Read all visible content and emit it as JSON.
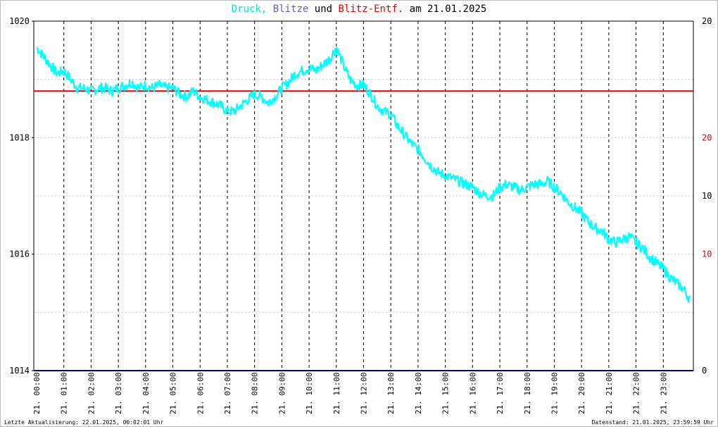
{
  "title": {
    "part1": "Druck,",
    "part2": "Blitze",
    "part3": "und",
    "part4": "Blitz-Entf.",
    "part5": "am 21.01.2025"
  },
  "colors": {
    "pressure": "#00ffff",
    "lightning": "#6060c0",
    "distance": "#e00000",
    "axis": "#000000",
    "grid": "#c8c8c8",
    "baseline": "#000080"
  },
  "footer": {
    "left": "Letzte Aktualisierung: 22.01.2025, 00:02:01 Uhr",
    "right": "Datenstand: 21.01.2025, 23:59:59 Uhr"
  },
  "chart_data": {
    "type": "line",
    "x_date": "21.",
    "x_tick_labels": [
      "00:00",
      "01:00",
      "02:00",
      "03:00",
      "04:00",
      "05:00",
      "06:00",
      "07:00",
      "08:00",
      "09:00",
      "10:00",
      "11:00",
      "12:00",
      "13:00",
      "14:00",
      "15:00",
      "16:00",
      "17:00",
      "18:00",
      "19:00",
      "20:00",
      "21:00",
      "22:00",
      "23:00"
    ],
    "left_axis": {
      "ylim": [
        1014,
        1020
      ],
      "ticks": [
        1014,
        1016,
        1018,
        1020
      ]
    },
    "right_axis_distance": {
      "ylim": [
        0,
        30
      ],
      "ticks": [
        0,
        10,
        20
      ],
      "color": "#e00000"
    },
    "right_axis_lightning": {
      "ylim": [
        0,
        30
      ],
      "ticks": [
        0,
        10,
        20
      ],
      "color": "#000000"
    },
    "grid": true,
    "series": [
      {
        "name": "Druck",
        "x_hours": [
          0,
          0.25,
          0.5,
          0.75,
          1,
          1.25,
          1.5,
          1.75,
          2,
          2.25,
          2.5,
          2.75,
          3,
          3.25,
          3.5,
          3.75,
          4,
          4.25,
          4.5,
          4.75,
          5,
          5.25,
          5.5,
          5.75,
          6,
          6.25,
          6.5,
          6.75,
          7,
          7.25,
          7.5,
          7.75,
          8,
          8.25,
          8.5,
          8.75,
          9,
          9.25,
          9.5,
          9.75,
          10,
          10.25,
          10.5,
          10.75,
          11,
          11.25,
          11.5,
          11.75,
          12,
          12.25,
          12.5,
          12.75,
          13,
          13.25,
          13.5,
          13.75,
          14,
          14.25,
          14.5,
          14.75,
          15,
          15.25,
          15.5,
          15.75,
          16,
          16.25,
          16.5,
          16.75,
          17,
          17.25,
          17.5,
          17.75,
          18,
          18.25,
          18.5,
          18.75,
          19,
          19.25,
          19.5,
          19.75,
          20,
          20.25,
          20.5,
          20.75,
          21,
          21.25,
          21.5,
          21.75,
          22,
          22.25,
          22.5,
          22.75,
          23,
          23.25,
          23.5,
          23.75,
          24
        ],
        "values": [
          1019.55,
          1019.4,
          1019.25,
          1019.1,
          1019.15,
          1019.0,
          1018.85,
          1018.85,
          1018.8,
          1018.85,
          1018.85,
          1018.8,
          1018.85,
          1018.9,
          1018.95,
          1018.85,
          1018.9,
          1018.85,
          1018.9,
          1018.85,
          1018.85,
          1018.75,
          1018.7,
          1018.8,
          1018.7,
          1018.65,
          1018.6,
          1018.55,
          1018.45,
          1018.45,
          1018.55,
          1018.65,
          1018.75,
          1018.7,
          1018.6,
          1018.7,
          1018.85,
          1018.95,
          1019.1,
          1019.15,
          1019.2,
          1019.15,
          1019.25,
          1019.35,
          1019.55,
          1019.25,
          1019.0,
          1018.9,
          1018.9,
          1018.75,
          1018.55,
          1018.45,
          1018.4,
          1018.2,
          1018.05,
          1017.9,
          1017.8,
          1017.65,
          1017.5,
          1017.4,
          1017.35,
          1017.3,
          1017.25,
          1017.2,
          1017.15,
          1017.05,
          1017.0,
          1017.0,
          1017.15,
          1017.2,
          1017.15,
          1017.1,
          1017.15,
          1017.2,
          1017.2,
          1017.25,
          1017.15,
          1017.05,
          1016.9,
          1016.8,
          1016.7,
          1016.55,
          1016.45,
          1016.4,
          1016.25,
          1016.2,
          1016.25,
          1016.3,
          1016.2,
          1016.1,
          1015.95,
          1015.85,
          1015.75,
          1015.6,
          1015.5,
          1015.4,
          1015.2
        ]
      },
      {
        "name": "Blitz-Entf.",
        "constant_value": 24
      },
      {
        "name": "Blitze",
        "constant_value": 0
      }
    ]
  }
}
